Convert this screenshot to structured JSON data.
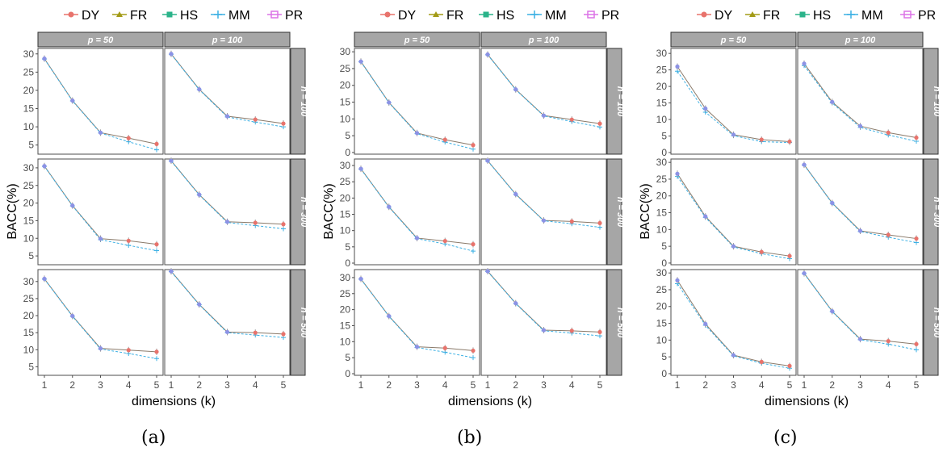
{
  "legend": [
    {
      "name": "DY",
      "color": "#e8736c"
    },
    {
      "name": "FR",
      "color": "#a39b17"
    },
    {
      "name": "HS",
      "color": "#2bb38a"
    },
    {
      "name": "MM",
      "color": "#3cb0e4"
    },
    {
      "name": "PR",
      "color": "#dc73e6"
    }
  ],
  "colors": {
    "strip_fill": "#a6a6a6",
    "strip_text": "#ffffff",
    "panel_border": "#4d4d4d",
    "axis_text": "#4d4d4d",
    "axis_title": "#000000"
  },
  "chart_data": [
    {
      "type": "line",
      "label": "(a)",
      "layout": "facet-grid",
      "column_strips": [
        "p = 50",
        "p = 100"
      ],
      "row_strips": [
        "n = 100",
        "n = 300",
        "n = 500"
      ],
      "xlabel": "dimensions (k)",
      "ylabel": "BACC(%)",
      "x": [
        1,
        2,
        3,
        4,
        5
      ],
      "xticks": [
        "1",
        "2",
        "3",
        "4",
        "5"
      ],
      "panels": [
        {
          "row": 0,
          "col": 0,
          "ylim": [
            2.5,
            31.5
          ],
          "yticks": [
            5,
            10,
            15,
            20,
            25,
            30
          ],
          "series": [
            {
              "name": "DY",
              "values": [
                28.7,
                17.2,
                8.4,
                6.9,
                5.3
              ]
            },
            {
              "name": "MM",
              "values": [
                28.6,
                17.1,
                8.3,
                5.9,
                3.7
              ]
            }
          ]
        },
        {
          "row": 0,
          "col": 1,
          "ylim": [
            2.5,
            31.5
          ],
          "yticks": [
            5,
            10,
            15,
            20,
            25,
            30
          ],
          "series": [
            {
              "name": "DY",
              "values": [
                30.0,
                20.3,
                12.9,
                12.0,
                10.9
              ]
            },
            {
              "name": "MM",
              "values": [
                29.9,
                20.2,
                12.7,
                11.3,
                10.0
              ]
            }
          ]
        },
        {
          "row": 1,
          "col": 0,
          "ylim": [
            2.5,
            32.5
          ],
          "yticks": [
            5,
            10,
            15,
            20,
            25,
            30
          ],
          "series": [
            {
              "name": "DY",
              "values": [
                30.5,
                19.3,
                9.9,
                9.3,
                8.3
              ]
            },
            {
              "name": "MM",
              "values": [
                30.4,
                19.2,
                9.6,
                8.0,
                6.5
              ]
            }
          ]
        },
        {
          "row": 1,
          "col": 1,
          "ylim": [
            2.5,
            32.5
          ],
          "yticks": [
            5,
            10,
            15,
            20,
            25,
            30
          ],
          "series": [
            {
              "name": "DY",
              "values": [
                32.0,
                22.4,
                14.7,
                14.4,
                14.0
              ]
            },
            {
              "name": "MM",
              "values": [
                31.9,
                22.3,
                14.5,
                13.6,
                12.7
              ]
            }
          ]
        },
        {
          "row": 2,
          "col": 0,
          "ylim": [
            2.5,
            33.5
          ],
          "yticks": [
            5,
            10,
            15,
            20,
            25,
            30
          ],
          "series": [
            {
              "name": "DY",
              "values": [
                30.8,
                19.9,
                10.4,
                9.9,
                9.4
              ]
            },
            {
              "name": "MM",
              "values": [
                30.7,
                19.8,
                10.2,
                8.9,
                7.4
              ]
            }
          ]
        },
        {
          "row": 2,
          "col": 1,
          "ylim": [
            2.5,
            33.5
          ],
          "yticks": [
            5,
            10,
            15,
            20,
            25,
            30
          ],
          "series": [
            {
              "name": "DY",
              "values": [
                33.0,
                23.3,
                15.2,
                15.0,
                14.6
              ]
            },
            {
              "name": "MM",
              "values": [
                32.9,
                23.2,
                15.0,
                14.3,
                13.6
              ]
            }
          ]
        }
      ]
    },
    {
      "type": "line",
      "label": "(b)",
      "layout": "facet-grid",
      "column_strips": [
        "p = 50",
        "p = 100"
      ],
      "row_strips": [
        "n = 100",
        "n = 300",
        "n = 500"
      ],
      "xlabel": "dimensions (k)",
      "ylabel": "BACC(%)",
      "x": [
        1,
        2,
        3,
        4,
        5
      ],
      "xticks": [
        "1",
        "2",
        "3",
        "4",
        "5"
      ],
      "panels": [
        {
          "row": 0,
          "col": 0,
          "ylim": [
            -0.5,
            31
          ],
          "yticks": [
            0,
            5,
            10,
            15,
            20,
            25,
            30
          ],
          "series": [
            {
              "name": "DY",
              "values": [
                27.1,
                14.9,
                5.8,
                3.8,
                2.2
              ]
            },
            {
              "name": "MM",
              "values": [
                27.0,
                14.8,
                5.6,
                3.1,
                1.0
              ]
            }
          ]
        },
        {
          "row": 0,
          "col": 1,
          "ylim": [
            -0.5,
            31
          ],
          "yticks": [
            0,
            5,
            10,
            15,
            20,
            25,
            30
          ],
          "series": [
            {
              "name": "DY",
              "values": [
                29.2,
                18.8,
                11.0,
                9.8,
                8.6
              ]
            },
            {
              "name": "MM",
              "values": [
                29.1,
                18.7,
                10.9,
                9.2,
                7.6
              ]
            }
          ]
        },
        {
          "row": 1,
          "col": 0,
          "ylim": [
            -0.5,
            32
          ],
          "yticks": [
            0,
            5,
            10,
            15,
            20,
            25,
            30
          ],
          "series": [
            {
              "name": "DY",
              "values": [
                29.0,
                17.3,
                7.7,
                6.8,
                5.8
              ]
            },
            {
              "name": "MM",
              "values": [
                28.9,
                17.2,
                7.5,
                5.9,
                3.7
              ]
            }
          ]
        },
        {
          "row": 1,
          "col": 1,
          "ylim": [
            -0.5,
            32
          ],
          "yticks": [
            0,
            5,
            10,
            15,
            20,
            25,
            30
          ],
          "series": [
            {
              "name": "DY",
              "values": [
                31.5,
                21.2,
                13.1,
                12.8,
                12.3
              ]
            },
            {
              "name": "MM",
              "values": [
                31.4,
                21.1,
                13.0,
                12.1,
                11.0
              ]
            }
          ]
        },
        {
          "row": 2,
          "col": 0,
          "ylim": [
            -0.5,
            32.5
          ],
          "yticks": [
            0,
            5,
            10,
            15,
            20,
            25,
            30
          ],
          "series": [
            {
              "name": "DY",
              "values": [
                29.6,
                18.0,
                8.4,
                8.0,
                7.2
              ]
            },
            {
              "name": "MM",
              "values": [
                29.5,
                17.9,
                8.2,
                6.7,
                5.0
              ]
            }
          ]
        },
        {
          "row": 2,
          "col": 1,
          "ylim": [
            -0.5,
            32.5
          ],
          "yticks": [
            0,
            5,
            10,
            15,
            20,
            25,
            30
          ],
          "series": [
            {
              "name": "DY",
              "values": [
                32.0,
                22.0,
                13.6,
                13.4,
                13.0
              ]
            },
            {
              "name": "MM",
              "values": [
                31.9,
                21.9,
                13.4,
                12.7,
                11.8
              ]
            }
          ]
        }
      ]
    },
    {
      "type": "line",
      "label": "(c)",
      "layout": "facet-grid",
      "column_strips": [
        "p = 50",
        "p = 100"
      ],
      "row_strips": [
        "n = 100",
        "n = 300",
        "n = 500"
      ],
      "xlabel": "dimensions (k)",
      "ylabel": "BACC(%)",
      "x": [
        1,
        2,
        3,
        4,
        5
      ],
      "xticks": [
        "1",
        "2",
        "3",
        "4",
        "5"
      ],
      "panels": [
        {
          "row": 0,
          "col": 0,
          "ylim": [
            -0.5,
            31.5
          ],
          "yticks": [
            0,
            5,
            10,
            15,
            20,
            25,
            30
          ],
          "series": [
            {
              "name": "DY",
              "values": [
                26.0,
                13.3,
                5.4,
                3.9,
                3.3
              ]
            },
            {
              "name": "MM",
              "values": [
                24.6,
                12.2,
                5.1,
                3.3,
                3.0
              ]
            }
          ]
        },
        {
          "row": 0,
          "col": 1,
          "ylim": [
            -0.5,
            31.5
          ],
          "yticks": [
            0,
            5,
            10,
            15,
            20,
            25,
            30
          ],
          "series": [
            {
              "name": "DY",
              "values": [
                26.9,
                15.3,
                8.0,
                6.0,
                4.5
              ]
            },
            {
              "name": "MM",
              "values": [
                26.3,
                15.0,
                7.6,
                5.3,
                3.4
              ]
            }
          ]
        },
        {
          "row": 1,
          "col": 0,
          "ylim": [
            -0.5,
            31
          ],
          "yticks": [
            0,
            5,
            10,
            15,
            20,
            25,
            30
          ],
          "series": [
            {
              "name": "DY",
              "values": [
                26.6,
                13.9,
                5.0,
                3.3,
                2.1
              ]
            },
            {
              "name": "MM",
              "values": [
                25.8,
                13.6,
                4.8,
                2.8,
                1.3
              ]
            }
          ]
        },
        {
          "row": 1,
          "col": 1,
          "ylim": [
            -0.5,
            31
          ],
          "yticks": [
            0,
            5,
            10,
            15,
            20,
            25,
            30
          ],
          "series": [
            {
              "name": "DY",
              "values": [
                29.3,
                17.9,
                9.6,
                8.4,
                7.3
              ]
            },
            {
              "name": "MM",
              "values": [
                29.2,
                17.8,
                9.4,
                7.7,
                6.1
              ]
            }
          ]
        },
        {
          "row": 2,
          "col": 0,
          "ylim": [
            -0.5,
            31
          ],
          "yticks": [
            0,
            5,
            10,
            15,
            20,
            25,
            30
          ],
          "series": [
            {
              "name": "DY",
              "values": [
                27.8,
                14.8,
                5.5,
                3.5,
                2.3
              ]
            },
            {
              "name": "MM",
              "values": [
                26.8,
                14.4,
                5.3,
                3.1,
                1.6
              ]
            }
          ]
        },
        {
          "row": 2,
          "col": 1,
          "ylim": [
            -0.5,
            31
          ],
          "yticks": [
            0,
            5,
            10,
            15,
            20,
            25,
            30
          ],
          "series": [
            {
              "name": "DY",
              "values": [
                29.9,
                18.6,
                10.3,
                9.7,
                8.8
              ]
            },
            {
              "name": "MM",
              "values": [
                29.8,
                18.5,
                10.1,
                8.8,
                7.1
              ]
            }
          ]
        }
      ]
    }
  ]
}
